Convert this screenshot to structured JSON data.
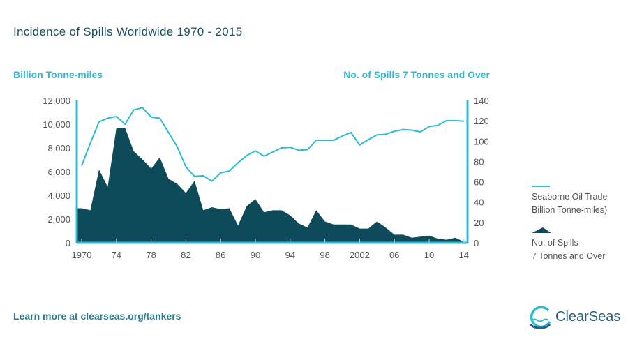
{
  "chart_data": {
    "type": "area+line",
    "title": "Incidence of Spills Worldwide 1970 - 2015",
    "ylabel": "Billion Tonne-miles",
    "y2label": "No. of Spills 7 Tonnes and Over",
    "ylim": [
      0,
      12000
    ],
    "y2lim": [
      0,
      140
    ],
    "yticks": [
      "0",
      "2,000",
      "4,000",
      "6,000",
      "8,000",
      "10,000",
      "12,000"
    ],
    "y2ticks": [
      "0",
      "20",
      "40",
      "60",
      "80",
      "100",
      "120",
      "140"
    ],
    "xtick_labels": [
      "1970",
      "74",
      "78",
      "82",
      "86",
      "90",
      "94",
      "98",
      "2002",
      "06",
      "10",
      "14"
    ],
    "xtick_years": [
      1970,
      1974,
      1978,
      1982,
      1986,
      1990,
      1994,
      1998,
      2002,
      2006,
      2010,
      2014
    ],
    "x": [
      1970,
      1971,
      1972,
      1973,
      1974,
      1975,
      1976,
      1977,
      1978,
      1979,
      1980,
      1981,
      1982,
      1983,
      1984,
      1985,
      1986,
      1987,
      1988,
      1989,
      1990,
      1991,
      1992,
      1993,
      1994,
      1995,
      1996,
      1997,
      1998,
      1999,
      2000,
      2001,
      2002,
      2003,
      2004,
      2005,
      2006,
      2007,
      2008,
      2009,
      2010,
      2011,
      2012,
      2013,
      2014
    ],
    "series": [
      {
        "name": "Seaborne Oil Trade Billion Tonne-miles)",
        "axis": "left",
        "type": "line",
        "color": "#2bbcd4",
        "values": [
          6500,
          8400,
          10200,
          10500,
          10650,
          10000,
          11200,
          11400,
          10600,
          10500,
          9300,
          8100,
          6400,
          5600,
          5650,
          5200,
          5900,
          6050,
          6750,
          7350,
          7750,
          7300,
          7650,
          8000,
          8050,
          7800,
          7850,
          8650,
          8650,
          8650,
          9000,
          9300,
          8250,
          8700,
          9100,
          9150,
          9400,
          9550,
          9500,
          9350,
          9800,
          9900,
          10300,
          10300,
          10250
        ]
      },
      {
        "name": "No. of Spills 7 Tonnes and Over",
        "axis": "right",
        "type": "area",
        "color": "#0d4a5a",
        "values": [
          34,
          32,
          72,
          55,
          113,
          113,
          90,
          82,
          73,
          84,
          63,
          58,
          49,
          61,
          32,
          35,
          33,
          34,
          17,
          36,
          43,
          30,
          32,
          32,
          27,
          19,
          15,
          32,
          21,
          18,
          18,
          18,
          14,
          14,
          21,
          15,
          8,
          8,
          5,
          6,
          7,
          4,
          3,
          5,
          1
        ]
      }
    ],
    "legend_position": "right"
  },
  "legend": {
    "line1": "Seaborne Oil Trade",
    "line2": "Billion Tonne-miles)",
    "area1": "No. of Spills",
    "area2": "7 Tonnes and Over"
  },
  "footer": "Learn more at clearseas.org/tankers",
  "logo": "ClearSeas"
}
